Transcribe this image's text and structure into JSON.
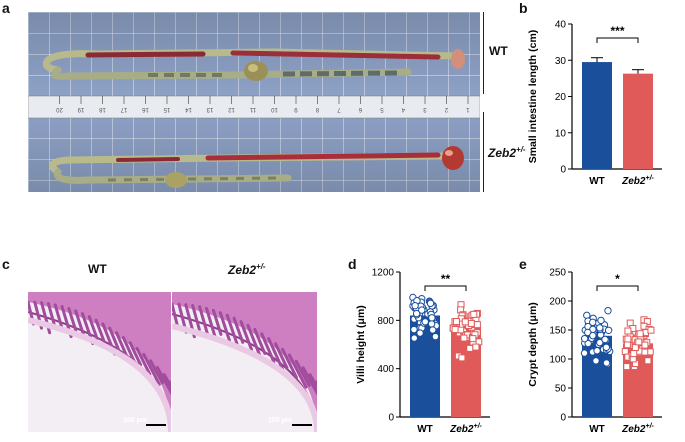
{
  "figure": {
    "panel_labels": {
      "a": "a",
      "b": "b",
      "c": "c",
      "d": "d",
      "e": "e"
    },
    "photo_a": {
      "top_label": "WT",
      "bottom_label_base": "Zeb2",
      "bottom_label_sup": "+/-",
      "ruler_ticks": [
        "1",
        "2",
        "3",
        "4",
        "5",
        "6",
        "7",
        "8",
        "9",
        "10",
        "11",
        "12",
        "13",
        "14",
        "15",
        "16",
        "17",
        "18",
        "19",
        "20"
      ]
    },
    "photo_c": {
      "left_title": "WT",
      "right_title_base": "Zeb2",
      "right_title_sup": "+/-",
      "scale_left": "100 μm",
      "scale_right": "100 μm"
    },
    "colors": {
      "wt": "#1a4f9c",
      "mut": "#e05a5a",
      "tissue": "#b455a8",
      "grid_bg": "#8da0c4"
    }
  },
  "chart_data": [
    {
      "id": "b",
      "type": "bar",
      "categories": [
        "WT",
        "Zeb2+/-"
      ],
      "cat_labels": [
        {
          "base": "WT",
          "sup": ""
        },
        {
          "base": "Zeb2",
          "sup": "+/-"
        }
      ],
      "values": [
        29.5,
        26.3
      ],
      "errors": [
        1.2,
        1.1
      ],
      "ylabel": "Small intestine length (cm)",
      "ylim": [
        0,
        40
      ],
      "yticks": [
        "0",
        "10",
        "20",
        "30",
        "40"
      ],
      "significance": "***"
    },
    {
      "id": "d",
      "type": "bar",
      "categories": [
        "WT",
        "Zeb2+/-"
      ],
      "cat_labels": [
        {
          "base": "WT",
          "sup": ""
        },
        {
          "base": "Zeb2",
          "sup": "+/-"
        }
      ],
      "values": [
        840,
        750
      ],
      "errors": [
        40,
        60
      ],
      "ylabel": "Villi height (μm)",
      "ylim": [
        0,
        1200
      ],
      "yticks": [
        "0",
        "400",
        "800",
        "1200"
      ],
      "significance": "**"
    },
    {
      "id": "e",
      "type": "bar",
      "categories": [
        "WT",
        "Zeb2+/-"
      ],
      "cat_labels": [
        {
          "base": "WT",
          "sup": ""
        },
        {
          "base": "Zeb2",
          "sup": "+/-"
        }
      ],
      "values": [
        140,
        127
      ],
      "errors": [
        6,
        7
      ],
      "ylabel": "Crypt depth (μm)",
      "ylim": [
        0,
        250
      ],
      "yticks": [
        "0",
        "50",
        "100",
        "150",
        "200",
        "250"
      ],
      "significance": "*"
    }
  ]
}
